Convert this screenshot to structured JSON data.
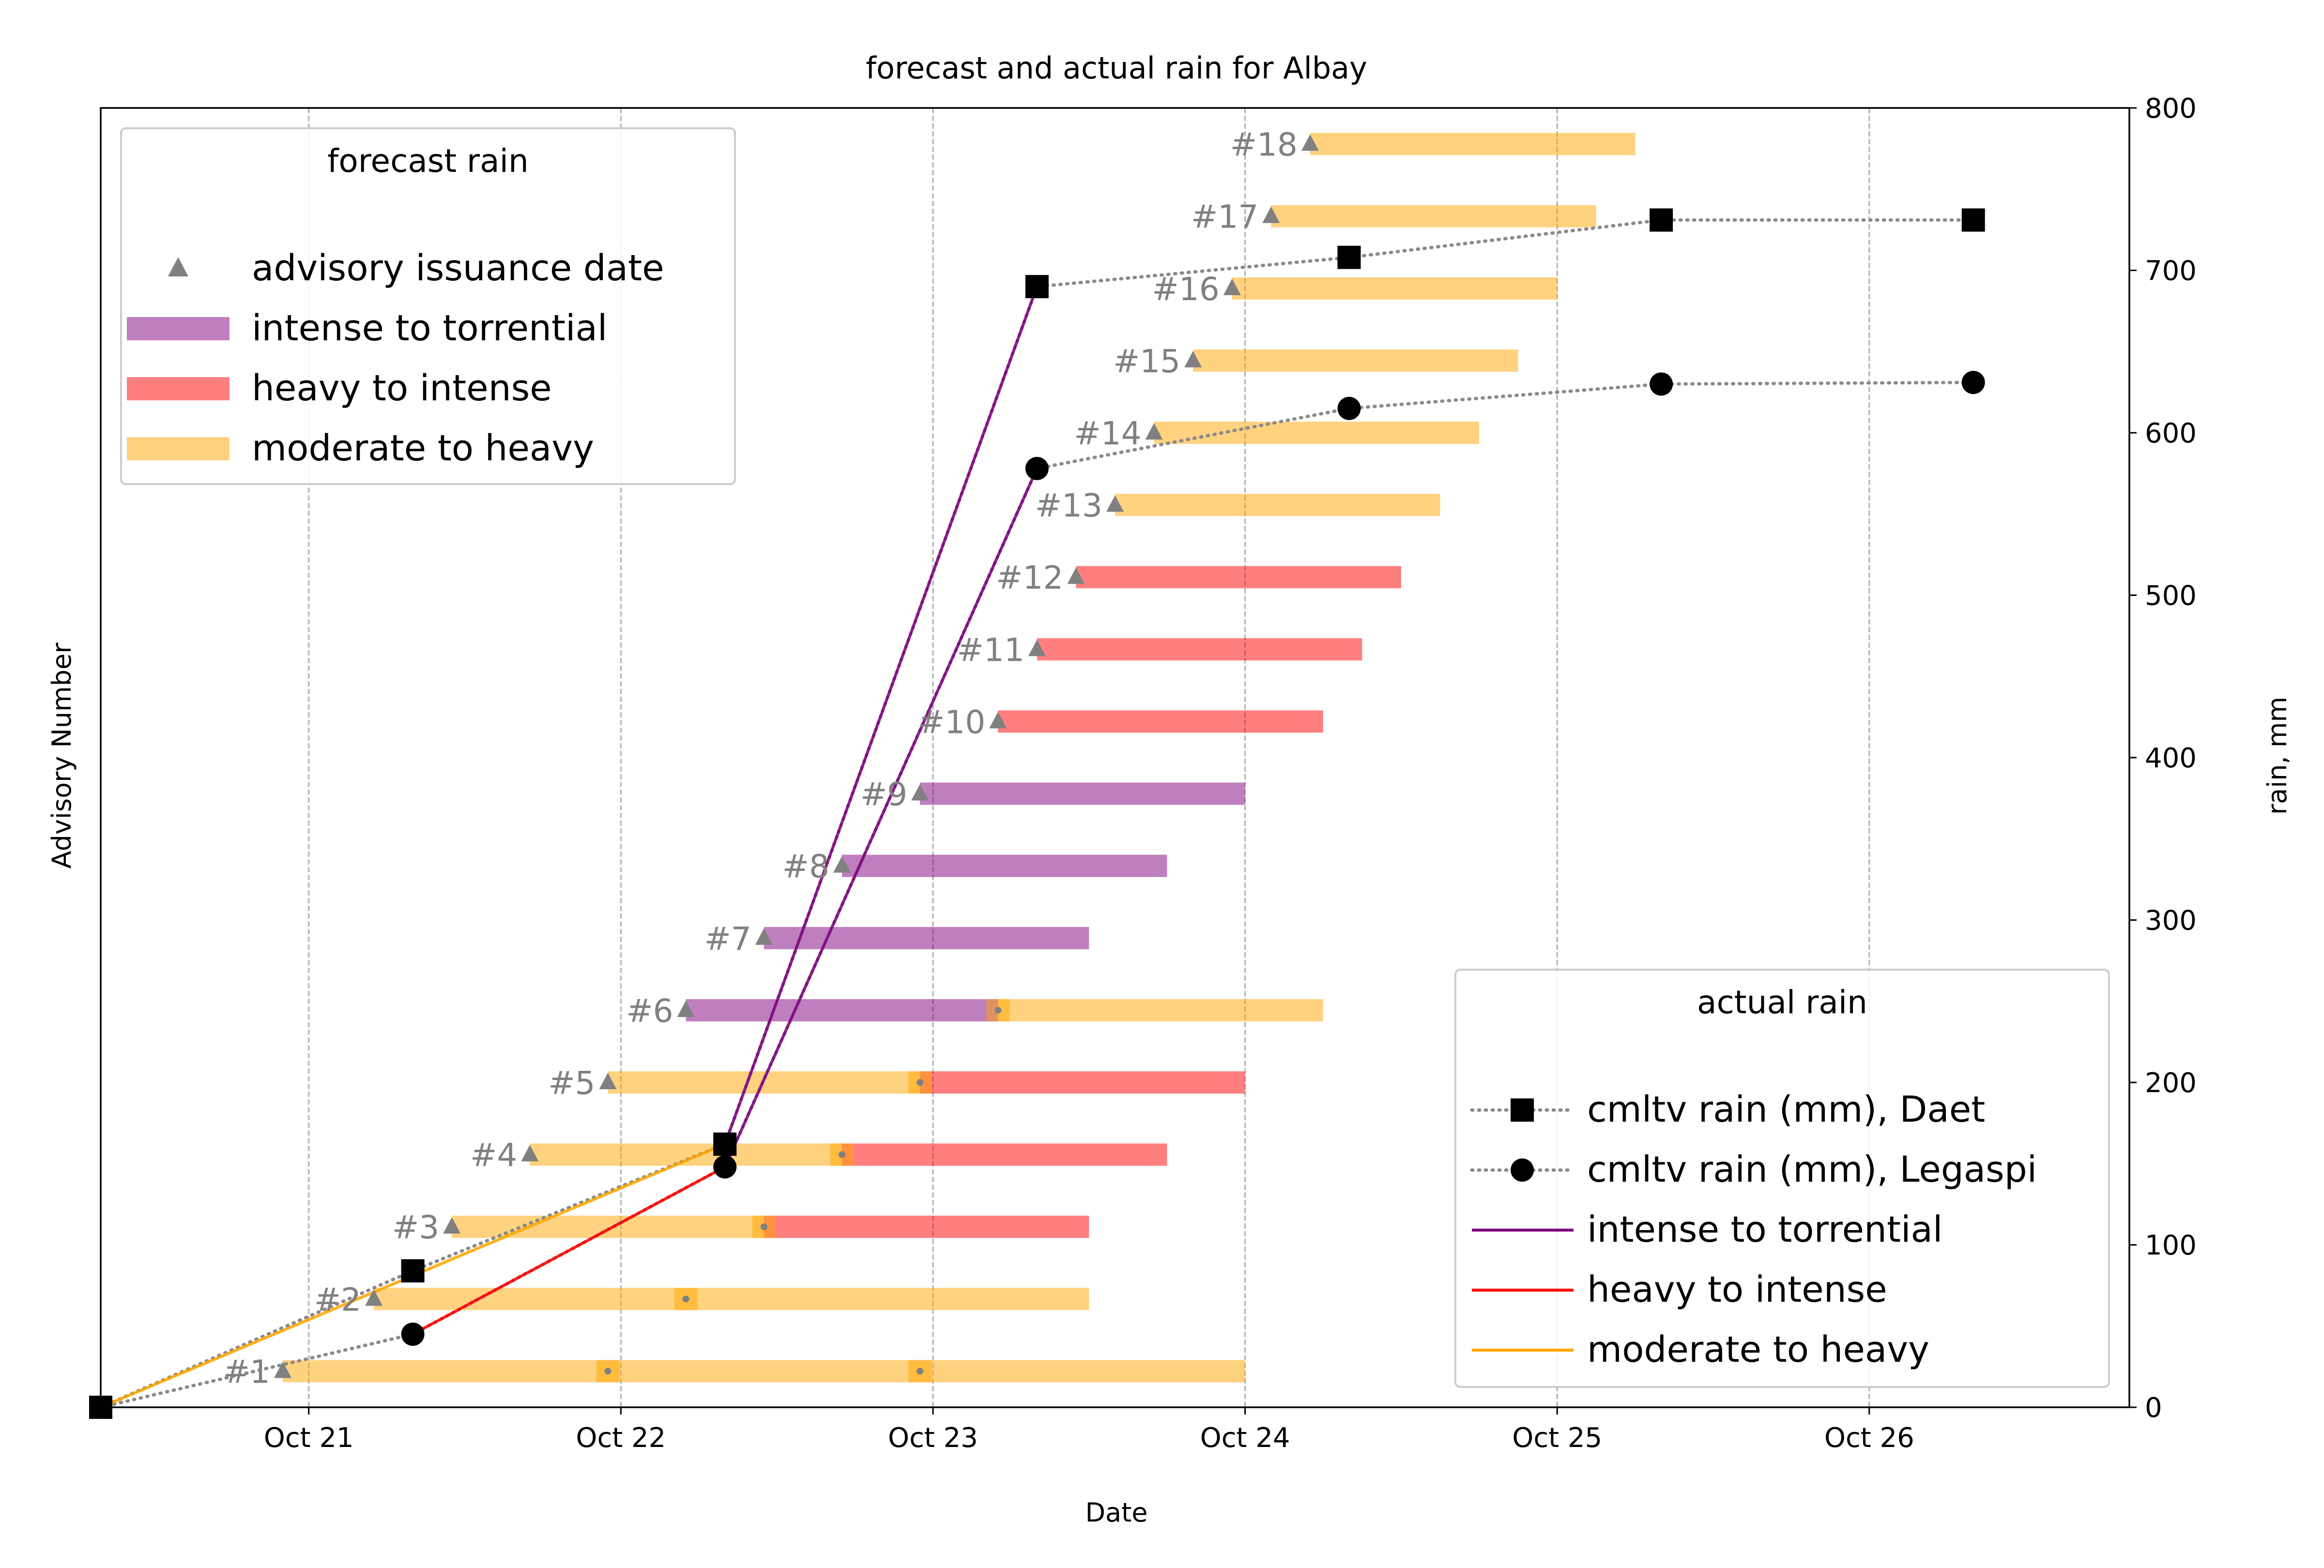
{
  "chart_data": {
    "type": "line",
    "title": "forecast and actual rain for Albay",
    "xlabel": "Date",
    "ylabel_left": "Advisory Number",
    "ylabel_right": "rain, mm",
    "x_axis": {
      "type": "date",
      "range": [
        "2020-10-20 08:00",
        "2020-10-26 20:00"
      ],
      "ticks": [
        {
          "date": "2020-10-21",
          "label": "Oct 21"
        },
        {
          "date": "2020-10-22",
          "label": "Oct 22"
        },
        {
          "date": "2020-10-23",
          "label": "Oct 23"
        },
        {
          "date": "2020-10-24",
          "label": "Oct 24"
        },
        {
          "date": "2020-10-25",
          "label": "Oct 25"
        },
        {
          "date": "2020-10-26",
          "label": "Oct 26"
        }
      ],
      "grid": true
    },
    "y_left": {
      "range": [
        0.5,
        18.5
      ],
      "ticks": []
    },
    "y_right": {
      "range": [
        0,
        800
      ],
      "ticks": [
        0,
        100,
        200,
        300,
        400,
        500,
        600,
        700,
        800
      ]
    },
    "colors": {
      "intense_to_torrential": "#800080",
      "heavy_to_intense": "#ff0000",
      "moderate_to_heavy": "#ffa500",
      "advisory_marker": "#808080",
      "actual_marker": "#000000",
      "grid": "#b0b0b0"
    },
    "advisories": [
      {
        "label": "#1",
        "number": 1,
        "issued": "2020-10-20 22:00",
        "segments": [
          {
            "category": "moderate to heavy",
            "start": "2020-10-20 22:00",
            "end": "2020-10-24 00:00"
          }
        ],
        "transitions": [
          "2020-10-21 23:00",
          "2020-10-22 23:00"
        ]
      },
      {
        "label": "#2",
        "number": 2,
        "issued": "2020-10-21 05:00",
        "segments": [
          {
            "category": "moderate to heavy",
            "start": "2020-10-21 05:00",
            "end": "2020-10-23 12:00"
          }
        ],
        "transitions": [
          "2020-10-22 05:00"
        ]
      },
      {
        "label": "#3",
        "number": 3,
        "issued": "2020-10-21 11:00",
        "segments": [
          {
            "category": "moderate to heavy",
            "start": "2020-10-21 11:00",
            "end": "2020-10-22 11:00"
          },
          {
            "category": "heavy to intense",
            "start": "2020-10-22 11:00",
            "end": "2020-10-23 12:00"
          }
        ],
        "transitions": [
          "2020-10-22 11:00"
        ]
      },
      {
        "label": "#4",
        "number": 4,
        "issued": "2020-10-21 17:00",
        "segments": [
          {
            "category": "moderate to heavy",
            "start": "2020-10-21 17:00",
            "end": "2020-10-22 17:00"
          },
          {
            "category": "heavy to intense",
            "start": "2020-10-22 17:00",
            "end": "2020-10-23 18:00"
          }
        ],
        "transitions": [
          "2020-10-22 17:00"
        ]
      },
      {
        "label": "#5",
        "number": 5,
        "issued": "2020-10-21 23:00",
        "segments": [
          {
            "category": "moderate to heavy",
            "start": "2020-10-21 23:00",
            "end": "2020-10-22 23:00"
          },
          {
            "category": "heavy to intense",
            "start": "2020-10-22 23:00",
            "end": "2020-10-24 00:00"
          }
        ],
        "transitions": [
          "2020-10-22 23:00"
        ]
      },
      {
        "label": "#6",
        "number": 6,
        "issued": "2020-10-22 05:00",
        "segments": [
          {
            "category": "intense to torrential",
            "start": "2020-10-22 05:00",
            "end": "2020-10-23 05:00"
          },
          {
            "category": "moderate to heavy",
            "start": "2020-10-23 05:00",
            "end": "2020-10-24 06:00"
          }
        ],
        "transitions": [
          "2020-10-23 05:00"
        ]
      },
      {
        "label": "#7",
        "number": 7,
        "issued": "2020-10-22 11:00",
        "segments": [
          {
            "category": "intense to torrential",
            "start": "2020-10-22 11:00",
            "end": "2020-10-23 12:00"
          }
        ],
        "transitions": []
      },
      {
        "label": "#8",
        "number": 8,
        "issued": "2020-10-22 17:00",
        "segments": [
          {
            "category": "intense to torrential",
            "start": "2020-10-22 17:00",
            "end": "2020-10-23 18:00"
          }
        ],
        "transitions": []
      },
      {
        "label": "#9",
        "number": 9,
        "issued": "2020-10-22 23:00",
        "segments": [
          {
            "category": "intense to torrential",
            "start": "2020-10-22 23:00",
            "end": "2020-10-24 00:00"
          }
        ],
        "transitions": []
      },
      {
        "label": "#10",
        "number": 10,
        "issued": "2020-10-23 05:00",
        "segments": [
          {
            "category": "heavy to intense",
            "start": "2020-10-23 05:00",
            "end": "2020-10-24 06:00"
          }
        ],
        "transitions": []
      },
      {
        "label": "#11",
        "number": 11,
        "issued": "2020-10-23 08:00",
        "segments": [
          {
            "category": "heavy to intense",
            "start": "2020-10-23 08:00",
            "end": "2020-10-24 09:00"
          }
        ],
        "transitions": []
      },
      {
        "label": "#12",
        "number": 12,
        "issued": "2020-10-23 11:00",
        "segments": [
          {
            "category": "heavy to intense",
            "start": "2020-10-23 11:00",
            "end": "2020-10-24 12:00"
          }
        ],
        "transitions": []
      },
      {
        "label": "#13",
        "number": 13,
        "issued": "2020-10-23 14:00",
        "segments": [
          {
            "category": "moderate to heavy",
            "start": "2020-10-23 14:00",
            "end": "2020-10-24 15:00"
          }
        ],
        "transitions": []
      },
      {
        "label": "#14",
        "number": 14,
        "issued": "2020-10-23 17:00",
        "segments": [
          {
            "category": "moderate to heavy",
            "start": "2020-10-23 17:00",
            "end": "2020-10-24 18:00"
          }
        ],
        "transitions": []
      },
      {
        "label": "#15",
        "number": 15,
        "issued": "2020-10-23 20:00",
        "segments": [
          {
            "category": "moderate to heavy",
            "start": "2020-10-23 20:00",
            "end": "2020-10-24 21:00"
          }
        ],
        "transitions": []
      },
      {
        "label": "#16",
        "number": 16,
        "issued": "2020-10-23 23:00",
        "segments": [
          {
            "category": "moderate to heavy",
            "start": "2020-10-23 23:00",
            "end": "2020-10-25 00:00"
          }
        ],
        "transitions": []
      },
      {
        "label": "#17",
        "number": 17,
        "issued": "2020-10-24 02:00",
        "segments": [
          {
            "category": "moderate to heavy",
            "start": "2020-10-24 02:00",
            "end": "2020-10-25 03:00"
          }
        ],
        "transitions": []
      },
      {
        "label": "#18",
        "number": 18,
        "issued": "2020-10-24 05:00",
        "segments": [
          {
            "category": "moderate to heavy",
            "start": "2020-10-24 05:00",
            "end": "2020-10-25 06:00"
          }
        ],
        "transitions": []
      }
    ],
    "series": [
      {
        "name": "cmltv rain (mm), Daet",
        "marker": "square",
        "style": "dotted",
        "points": [
          {
            "x": "2020-10-20 08:00",
            "y": 0
          },
          {
            "x": "2020-10-21 08:00",
            "y": 84
          },
          {
            "x": "2020-10-22 08:00",
            "y": 162
          },
          {
            "x": "2020-10-23 08:00",
            "y": 690
          },
          {
            "x": "2020-10-24 08:00",
            "y": 708
          },
          {
            "x": "2020-10-25 08:00",
            "y": 731
          },
          {
            "x": "2020-10-26 08:00",
            "y": 731
          }
        ]
      },
      {
        "name": "cmltv rain (mm), Legaspi",
        "marker": "circle",
        "style": "dotted",
        "points": [
          {
            "x": "2020-10-20 08:00",
            "y": 0
          },
          {
            "x": "2020-10-21 08:00",
            "y": 45
          },
          {
            "x": "2020-10-22 08:00",
            "y": 148
          },
          {
            "x": "2020-10-23 08:00",
            "y": 578
          },
          {
            "x": "2020-10-24 08:00",
            "y": 615
          },
          {
            "x": "2020-10-25 08:00",
            "y": 630
          },
          {
            "x": "2020-10-26 08:00",
            "y": 631
          }
        ]
      }
    ],
    "category_segments": [
      {
        "category": "intense to torrential",
        "station": "Daet",
        "from": {
          "x": "2020-10-22 08:00",
          "y": 162
        },
        "to": {
          "x": "2020-10-23 08:00",
          "y": 690
        }
      },
      {
        "category": "intense to torrential",
        "station": "Legaspi",
        "from": {
          "x": "2020-10-22 08:00",
          "y": 148
        },
        "to": {
          "x": "2020-10-23 08:00",
          "y": 578
        }
      },
      {
        "category": "heavy to intense",
        "station": "Legaspi",
        "from": {
          "x": "2020-10-21 08:00",
          "y": 45
        },
        "to": {
          "x": "2020-10-22 08:00",
          "y": 148
        }
      },
      {
        "category": "moderate to heavy",
        "station": "Daet",
        "from": {
          "x": "2020-10-20 08:00",
          "y": 0
        },
        "to": {
          "x": "2020-10-22 08:00",
          "y": 162
        }
      }
    ],
    "legend_forecast": {
      "title": "forecast rain",
      "placement": "upper-left",
      "items": [
        {
          "label": "advisory issuance date",
          "kind": "triangle"
        },
        {
          "label": "intense to torrential",
          "kind": "bar",
          "category": "intense to torrential"
        },
        {
          "label": "heavy to intense",
          "kind": "bar",
          "category": "heavy to intense"
        },
        {
          "label": "moderate to heavy",
          "kind": "bar",
          "category": "moderate to heavy"
        }
      ]
    },
    "legend_actual": {
      "title": "actual rain",
      "placement": "lower-right",
      "items": [
        {
          "label": "cmltv rain (mm), Daet",
          "kind": "square"
        },
        {
          "label": "cmltv rain (mm), Legaspi",
          "kind": "circle"
        },
        {
          "label": "intense to torrential",
          "kind": "line",
          "category": "intense to torrential"
        },
        {
          "label": "heavy to intense",
          "kind": "line",
          "category": "heavy to intense"
        },
        {
          "label": "moderate to heavy",
          "kind": "line",
          "category": "moderate to heavy"
        }
      ]
    }
  }
}
